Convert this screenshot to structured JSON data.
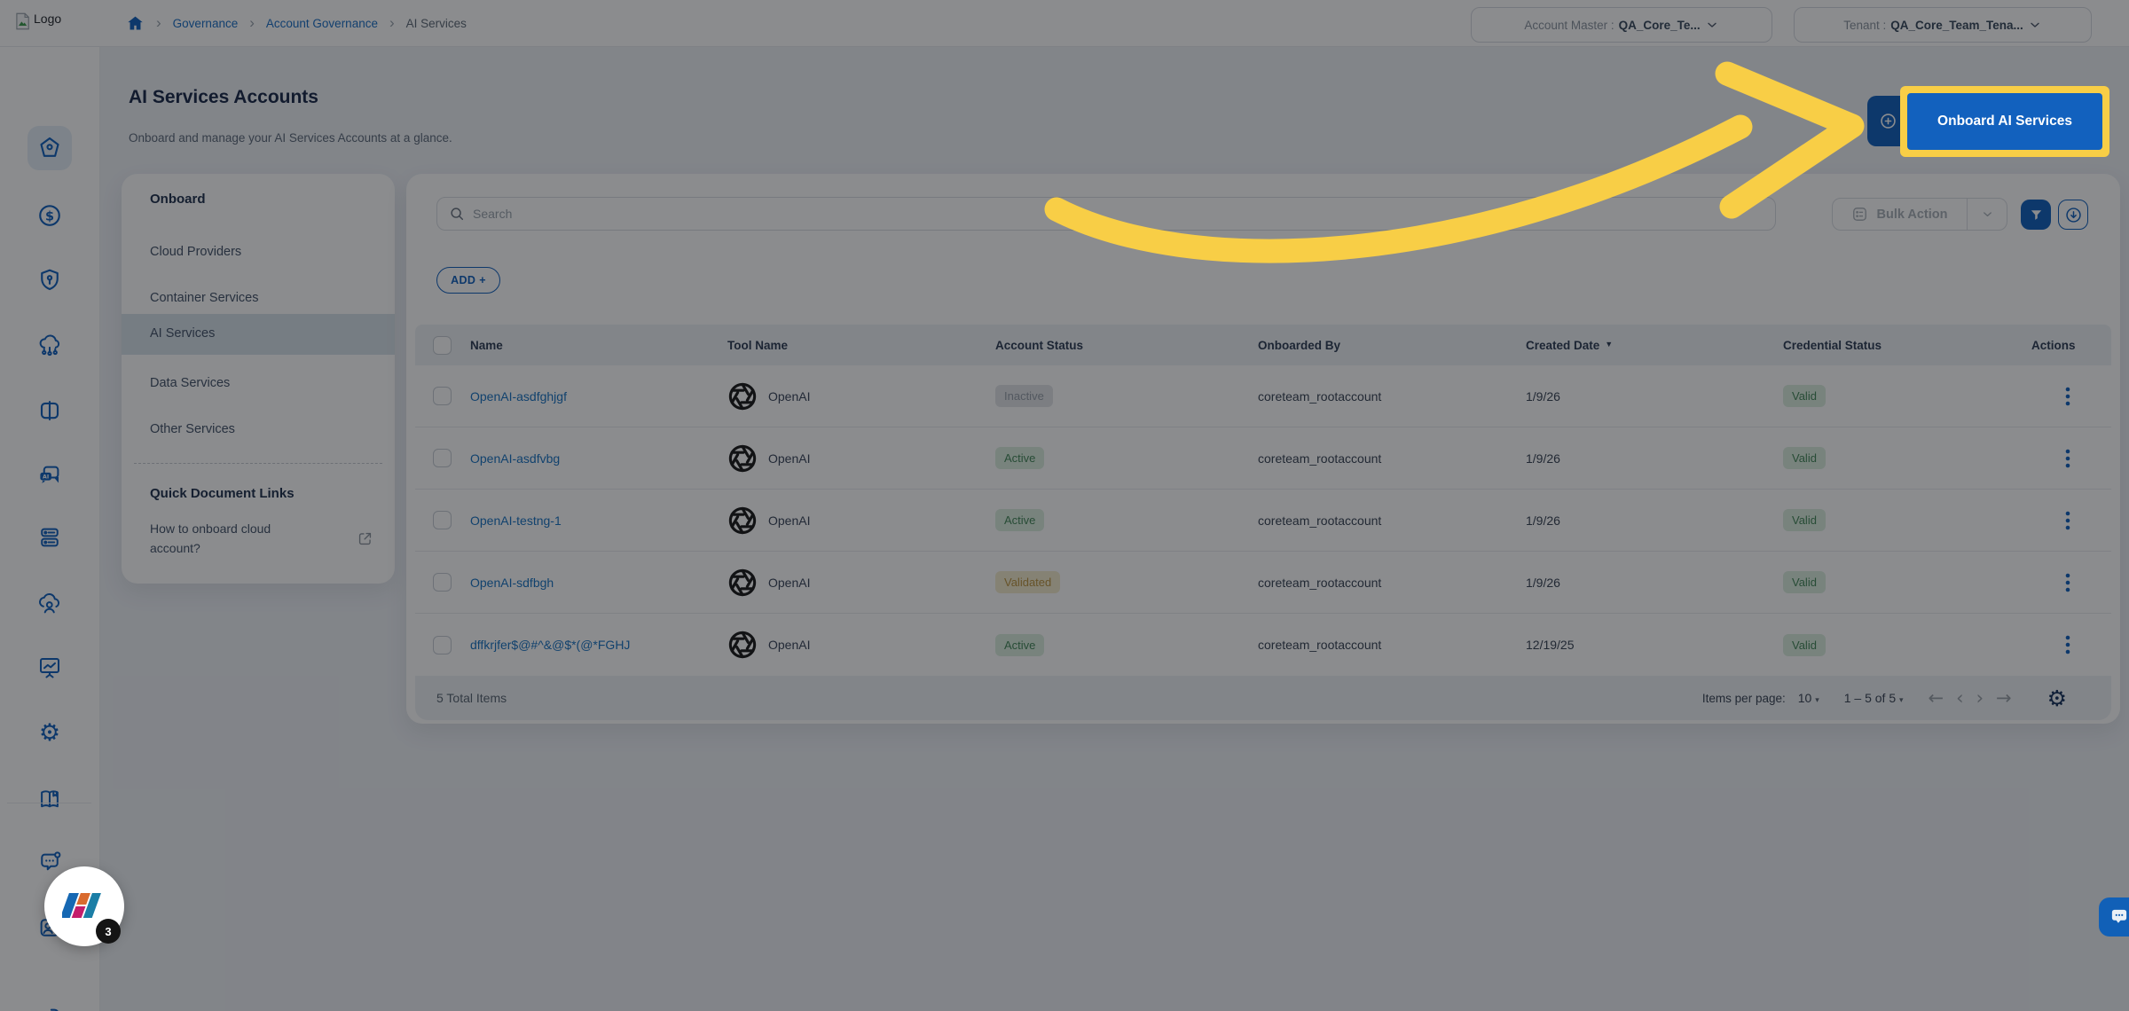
{
  "topbar": {
    "logo_alt": "Logo",
    "breadcrumb": {
      "items": [
        "Governance",
        "Account Governance",
        "AI Services"
      ]
    },
    "account_master": {
      "label": "Account Master :",
      "value": "QA_Core_Te..."
    },
    "tenant": {
      "label": "Tenant :",
      "value": "QA_Core_Team_Tena..."
    }
  },
  "sidebar": {
    "icons": [
      "home",
      "billing-dollar",
      "governance-shield",
      "cloud-network",
      "catalog-cards",
      "ai-assistant",
      "servers",
      "cloud-user",
      "reports-board",
      "settings-gear",
      "docs-book",
      "chat-feedback",
      "user-card",
      "logout"
    ],
    "active_icon": "home"
  },
  "page": {
    "title": "AI Services Accounts",
    "subtitle": "Onboard and manage your AI Services Accounts at a glance.",
    "onboard_button": "Onboard AI Services"
  },
  "side_panel": {
    "heading": "Onboard",
    "items": [
      "Cloud Providers",
      "Container Services",
      "AI Services",
      "Data Services",
      "Other Services"
    ],
    "selected": "AI Services",
    "quick_links_heading": "Quick Document Links",
    "doc_link": "How to onboard cloud account?"
  },
  "toolbar": {
    "search_placeholder": "Search",
    "add_label": "ADD +",
    "bulk_action_label": "Bulk Action"
  },
  "table": {
    "columns": [
      "Name",
      "Tool Name",
      "Account Status",
      "Onboarded By",
      "Created Date",
      "Credential Status",
      "Actions"
    ],
    "sorted_column": "Created Date",
    "rows": [
      {
        "name": "OpenAI-asdfghjgf",
        "tool": "OpenAI",
        "account_status": "Inactive",
        "onboarded_by": "coreteam_rootaccount",
        "created": "1/9/26",
        "credential_status": "Valid"
      },
      {
        "name": "OpenAI-asdfvbg",
        "tool": "OpenAI",
        "account_status": "Active",
        "onboarded_by": "coreteam_rootaccount",
        "created": "1/9/26",
        "credential_status": "Valid"
      },
      {
        "name": "OpenAI-testng-1",
        "tool": "OpenAI",
        "account_status": "Active",
        "onboarded_by": "coreteam_rootaccount",
        "created": "1/9/26",
        "credential_status": "Valid"
      },
      {
        "name": "OpenAI-sdfbgh",
        "tool": "OpenAI",
        "account_status": "Validated",
        "onboarded_by": "coreteam_rootaccount",
        "created": "1/9/26",
        "credential_status": "Valid"
      },
      {
        "name": "dffkrjfer$@#^&@$*(@*FGHJ",
        "tool": "OpenAI",
        "account_status": "Active",
        "onboarded_by": "coreteam_rootaccount",
        "created": "12/19/25",
        "credential_status": "Valid"
      }
    ]
  },
  "pagination": {
    "total": "5 Total Items",
    "items_per_page_label": "Items per page:",
    "items_per_page_value": "10",
    "range": "1 – 5 of 5"
  },
  "widget": {
    "badge_count": "3"
  },
  "status_colors": {
    "Active": {
      "bg": "#DCEEDF",
      "fg": "#44875A"
    },
    "Inactive": {
      "bg": "#E2E5E9",
      "fg": "#969EA8"
    },
    "Validated": {
      "bg": "#F3ECCF",
      "fg": "#BB9440"
    },
    "Valid": {
      "bg": "#DCEEDF",
      "fg": "#44875A"
    }
  },
  "colors": {
    "primary": "#1261BE",
    "highlight_yellow": "#F8CE46",
    "link": "#1A73C2",
    "title": "#1B2B4B"
  }
}
